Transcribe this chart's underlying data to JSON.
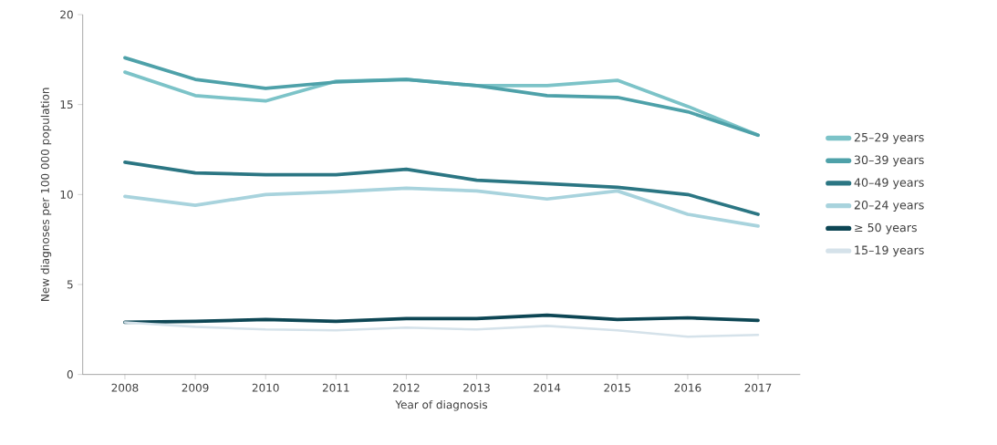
{
  "chart_data": {
    "type": "line",
    "xlabel": "Year of diagnosis",
    "ylabel": "New diagnoses per 100 000 population",
    "categories": [
      "2008",
      "2009",
      "2010",
      "2011",
      "2012",
      "2013",
      "2014",
      "2015",
      "2016",
      "2017"
    ],
    "series": [
      {
        "name": "25–29 years",
        "color": "#7cc3c8",
        "values": [
          16.8,
          15.5,
          15.2,
          16.3,
          16.4,
          16.05,
          16.05,
          16.35,
          14.9,
          13.3
        ]
      },
      {
        "name": "30–39 years",
        "color": "#4ea1a9",
        "values": [
          17.6,
          16.4,
          15.9,
          16.25,
          16.4,
          16.05,
          15.5,
          15.4,
          14.6,
          13.3
        ]
      },
      {
        "name": "40–49 years",
        "color": "#2b7683",
        "values": [
          11.8,
          11.2,
          11.1,
          11.1,
          11.4,
          10.8,
          10.6,
          10.4,
          10.0,
          8.9
        ]
      },
      {
        "name": "20–24 years",
        "color": "#a8d3dd",
        "values": [
          9.9,
          9.4,
          10.0,
          10.15,
          10.35,
          10.2,
          9.75,
          10.2,
          8.9,
          8.25
        ]
      },
      {
        "name": "≥ 50 years",
        "color": "#0d4654",
        "values": [
          2.9,
          2.95,
          3.05,
          2.95,
          3.1,
          3.1,
          3.3,
          3.05,
          3.15,
          3.0
        ]
      },
      {
        "name": "15–19 years",
        "color": "#d5e2ea",
        "values": [
          2.9,
          2.65,
          2.5,
          2.45,
          2.6,
          2.5,
          2.7,
          2.45,
          2.1,
          2.2
        ]
      }
    ],
    "ylim": [
      0,
      20
    ],
    "yticks": [
      0,
      5,
      10,
      15,
      20
    ],
    "grid": false,
    "legend": "right",
    "marker": "none",
    "line_style": "solid"
  }
}
